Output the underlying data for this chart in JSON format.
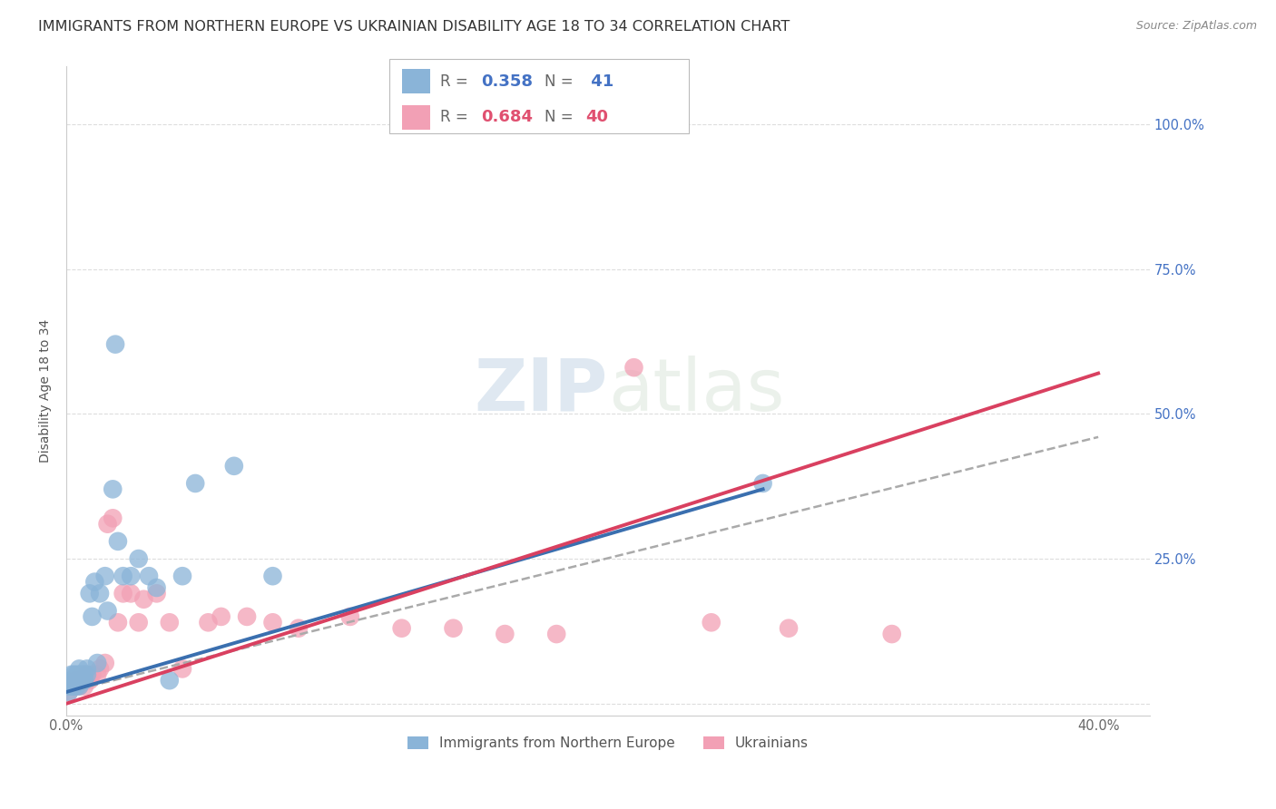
{
  "title": "IMMIGRANTS FROM NORTHERN EUROPE VS UKRAINIAN DISABILITY AGE 18 TO 34 CORRELATION CHART",
  "source": "Source: ZipAtlas.com",
  "ylabel": "Disability Age 18 to 34",
  "xlim": [
    0.0,
    0.42
  ],
  "ylim": [
    -0.02,
    1.1
  ],
  "blue_color": "#8ab4d8",
  "pink_color": "#f2a0b5",
  "trend_blue": "#3a6faf",
  "trend_pink": "#d94060",
  "grid_color": "#dddddd",
  "background_color": "#ffffff",
  "title_fontsize": 11.5,
  "axis_label_fontsize": 10,
  "tick_fontsize": 10.5,
  "source_fontsize": 9,
  "blue_scatter_x": [
    0.001,
    0.001,
    0.002,
    0.002,
    0.002,
    0.003,
    0.003,
    0.003,
    0.004,
    0.004,
    0.004,
    0.005,
    0.005,
    0.005,
    0.006,
    0.006,
    0.007,
    0.007,
    0.008,
    0.008,
    0.009,
    0.01,
    0.011,
    0.012,
    0.013,
    0.015,
    0.016,
    0.018,
    0.019,
    0.02,
    0.022,
    0.025,
    0.028,
    0.032,
    0.035,
    0.04,
    0.045,
    0.05,
    0.065,
    0.08,
    0.27
  ],
  "blue_scatter_y": [
    0.02,
    0.03,
    0.03,
    0.04,
    0.05,
    0.03,
    0.04,
    0.05,
    0.03,
    0.04,
    0.05,
    0.03,
    0.05,
    0.06,
    0.04,
    0.05,
    0.04,
    0.05,
    0.05,
    0.06,
    0.19,
    0.15,
    0.21,
    0.07,
    0.19,
    0.22,
    0.16,
    0.37,
    0.62,
    0.28,
    0.22,
    0.22,
    0.25,
    0.22,
    0.2,
    0.04,
    0.22,
    0.38,
    0.41,
    0.22,
    0.38
  ],
  "pink_scatter_x": [
    0.001,
    0.002,
    0.003,
    0.003,
    0.004,
    0.005,
    0.005,
    0.006,
    0.006,
    0.007,
    0.008,
    0.009,
    0.01,
    0.012,
    0.013,
    0.015,
    0.016,
    0.018,
    0.02,
    0.022,
    0.025,
    0.028,
    0.03,
    0.035,
    0.04,
    0.045,
    0.055,
    0.06,
    0.07,
    0.08,
    0.09,
    0.11,
    0.13,
    0.15,
    0.17,
    0.19,
    0.22,
    0.25,
    0.28,
    0.32
  ],
  "pink_scatter_y": [
    0.02,
    0.03,
    0.03,
    0.04,
    0.04,
    0.03,
    0.04,
    0.04,
    0.05,
    0.03,
    0.05,
    0.04,
    0.05,
    0.05,
    0.06,
    0.07,
    0.31,
    0.32,
    0.14,
    0.19,
    0.19,
    0.14,
    0.18,
    0.19,
    0.14,
    0.06,
    0.14,
    0.15,
    0.15,
    0.14,
    0.13,
    0.15,
    0.13,
    0.13,
    0.12,
    0.12,
    0.58,
    0.14,
    0.13,
    0.12
  ],
  "blue_trend_x": [
    0.0,
    0.27
  ],
  "blue_trend_y": [
    0.02,
    0.37
  ],
  "pink_trend_x": [
    0.0,
    0.4
  ],
  "pink_trend_y": [
    0.0,
    0.57
  ],
  "dash_trend_x": [
    0.0,
    0.4
  ],
  "dash_trend_y": [
    0.02,
    0.46
  ]
}
